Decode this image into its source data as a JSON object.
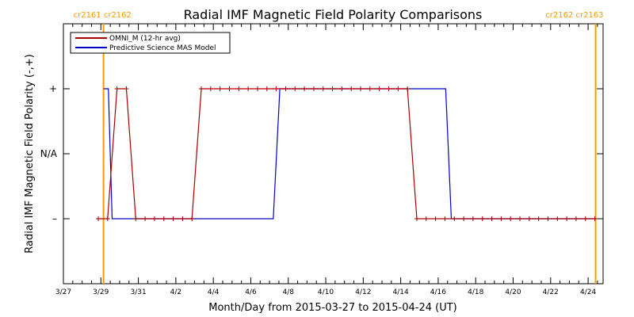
{
  "chart_data": {
    "type": "line",
    "title": "Radial IMF Magnetic Field Polarity Comparisons",
    "xlabel": "Month/Day from 2015-03-27 to 2015-04-24 (UT)",
    "ylabel": "Radial IMF Magnetic Field Polarity (-,+)",
    "xlim": [
      0,
      28.8
    ],
    "ylim": [
      -2,
      2
    ],
    "x_tick_values": [
      0,
      2,
      4,
      6,
      8,
      10,
      12,
      14,
      16,
      18,
      20,
      22,
      24,
      26,
      28
    ],
    "x_tick_labels": [
      "3/27",
      "3/29",
      "3/31",
      "4/2",
      "4/4",
      "4/6",
      "4/8",
      "4/10",
      "4/12",
      "4/14",
      "4/16",
      "4/18",
      "4/20",
      "4/22",
      "4/24"
    ],
    "y_levels": [
      {
        "value": 1,
        "label": "+"
      },
      {
        "value": 0,
        "label": "N/A"
      },
      {
        "value": -1,
        "label": "–"
      }
    ],
    "colors": {
      "omni": "#aa0000",
      "model": "#0000cc",
      "carrington": "#ff9900",
      "axes": "#000000"
    },
    "carrington_lines": [
      {
        "x": 2.14,
        "label_left": "cr2161",
        "label_right": "cr2162",
        "label_anchor": "left"
      },
      {
        "x": 28.4,
        "label_left": "cr2162",
        "label_right": "cr2163",
        "label_anchor": "right"
      }
    ],
    "legend": {
      "placement": "top-left",
      "entries": [
        {
          "name": "OMNI_M (12-hr avg)",
          "series": "omni"
        },
        {
          "name": "Predictive Science MAS Model",
          "series": "model"
        }
      ]
    },
    "series": [
      {
        "name": "OMNI_M (12-hr avg)",
        "color_key": "omni",
        "markers": true,
        "x": [
          1.86,
          2.36,
          2.86,
          3.36,
          3.86,
          4.36,
          4.86,
          5.36,
          5.86,
          6.36,
          6.86,
          7.36,
          7.86,
          8.36,
          8.86,
          9.36,
          9.86,
          10.36,
          10.86,
          11.36,
          11.86,
          12.36,
          12.86,
          13.36,
          13.86,
          14.36,
          14.86,
          15.36,
          15.86,
          16.36,
          16.86,
          17.36,
          17.86,
          18.36,
          18.86,
          19.36,
          19.86,
          20.36,
          20.86,
          21.36,
          21.86,
          22.36,
          22.86,
          23.36,
          23.86,
          24.36,
          24.86,
          25.36,
          25.86,
          26.36,
          26.86,
          27.36,
          27.86,
          28.36
        ],
        "y": [
          -1,
          -1,
          1,
          1,
          -1,
          -1,
          -1,
          -1,
          -1,
          -1,
          -1,
          1,
          1,
          1,
          1,
          1,
          1,
          1,
          1,
          1,
          1,
          1,
          1,
          1,
          1,
          1,
          1,
          1,
          1,
          1,
          1,
          1,
          1,
          1,
          -1,
          -1,
          -1,
          -1,
          -1,
          -1,
          -1,
          -1,
          -1,
          -1,
          -1,
          -1,
          -1,
          -1,
          -1,
          -1,
          -1,
          -1,
          -1,
          -1
        ]
      },
      {
        "name": "Predictive Science MAS Model",
        "color_key": "model",
        "markers": false,
        "x": [
          2.14,
          2.4,
          2.6,
          2.85,
          11.2,
          11.55,
          20.4,
          20.7,
          28.4
        ],
        "y": [
          1,
          1,
          -1,
          -1,
          -1,
          1,
          1,
          -1,
          -1
        ]
      }
    ]
  }
}
